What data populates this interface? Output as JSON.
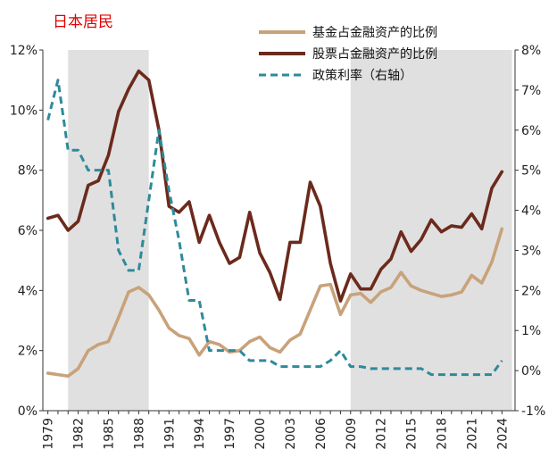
{
  "chart_data": {
    "type": "line",
    "title": "日本居民",
    "x": [
      1979,
      1980,
      1981,
      1982,
      1983,
      1984,
      1985,
      1986,
      1987,
      1988,
      1989,
      1990,
      1991,
      1992,
      1993,
      1994,
      1995,
      1996,
      1997,
      1998,
      1999,
      2000,
      2001,
      2002,
      2003,
      2004,
      2005,
      2006,
      2007,
      2008,
      2009,
      2010,
      2011,
      2012,
      2013,
      2014,
      2015,
      2016,
      2017,
      2018,
      2019,
      2020,
      2021,
      2022,
      2023,
      2024
    ],
    "x_ticks": [
      1979,
      1982,
      1985,
      1988,
      1991,
      1994,
      1997,
      2000,
      2003,
      2006,
      2009,
      2012,
      2015,
      2018,
      2021,
      2024
    ],
    "shaded_periods": [
      [
        1981,
        1989
      ],
      [
        2009,
        2025
      ]
    ],
    "left_axis": {
      "ylim": [
        0,
        12
      ],
      "ticks": [
        0,
        2,
        4,
        6,
        8,
        10,
        12
      ],
      "tick_labels": [
        "0%",
        "2%",
        "4%",
        "6%",
        "8%",
        "10%",
        "12%"
      ]
    },
    "right_axis": {
      "ylim": [
        -1,
        8
      ],
      "ticks": [
        -1,
        0,
        1,
        2,
        3,
        4,
        5,
        6,
        7,
        8
      ],
      "tick_labels": [
        "-1%",
        "0%",
        "1%",
        "2%",
        "3%",
        "4%",
        "5%",
        "6%",
        "7%",
        "8%"
      ]
    },
    "series": [
      {
        "name": "基金占金融资产的比例",
        "axis": "left",
        "color": "#c8a27a",
        "style": "solid",
        "values": [
          1.25,
          1.2,
          1.15,
          1.4,
          2.0,
          2.2,
          2.3,
          3.1,
          3.95,
          4.1,
          3.85,
          3.35,
          2.75,
          2.5,
          2.4,
          1.85,
          2.3,
          2.2,
          1.95,
          2.0,
          2.3,
          2.45,
          2.1,
          1.95,
          2.35,
          2.55,
          3.35,
          4.15,
          4.2,
          3.2,
          3.85,
          3.9,
          3.6,
          3.95,
          4.1,
          4.6,
          4.15,
          4.0,
          3.9,
          3.8,
          3.85,
          3.95,
          4.5,
          4.25,
          4.95,
          6.05
        ]
      },
      {
        "name": "股票占金融资产的比例",
        "axis": "left",
        "color": "#6b2a1c",
        "style": "solid",
        "values": [
          6.4,
          6.5,
          6.0,
          6.3,
          7.5,
          7.65,
          8.5,
          9.95,
          10.7,
          11.3,
          11.0,
          9.35,
          6.8,
          6.6,
          6.95,
          5.6,
          6.5,
          5.6,
          4.9,
          5.1,
          6.6,
          5.25,
          4.6,
          3.7,
          5.6,
          5.6,
          7.6,
          6.8,
          4.9,
          3.65,
          4.55,
          4.05,
          4.05,
          4.7,
          5.05,
          5.95,
          5.3,
          5.7,
          6.35,
          5.95,
          6.15,
          6.1,
          6.55,
          6.05,
          7.4,
          7.95
        ]
      },
      {
        "name": "政策利率（右轴）",
        "axis": "right",
        "color": "#2e8a9a",
        "style": "dashed",
        "values": [
          6.25,
          7.25,
          5.5,
          5.5,
          5.0,
          5.0,
          5.0,
          3.0,
          2.5,
          2.5,
          4.25,
          6.0,
          4.5,
          3.25,
          1.75,
          1.75,
          0.5,
          0.5,
          0.5,
          0.5,
          0.25,
          0.25,
          0.25,
          0.1,
          0.1,
          0.1,
          0.1,
          0.1,
          0.25,
          0.5,
          0.1,
          0.1,
          0.05,
          0.05,
          0.05,
          0.05,
          0.05,
          0.05,
          -0.1,
          -0.1,
          -0.1,
          -0.1,
          -0.1,
          -0.1,
          -0.1,
          0.25
        ]
      }
    ],
    "legend_position": "top-right",
    "xlabel": "",
    "ylabel": "",
    "y2label": ""
  }
}
